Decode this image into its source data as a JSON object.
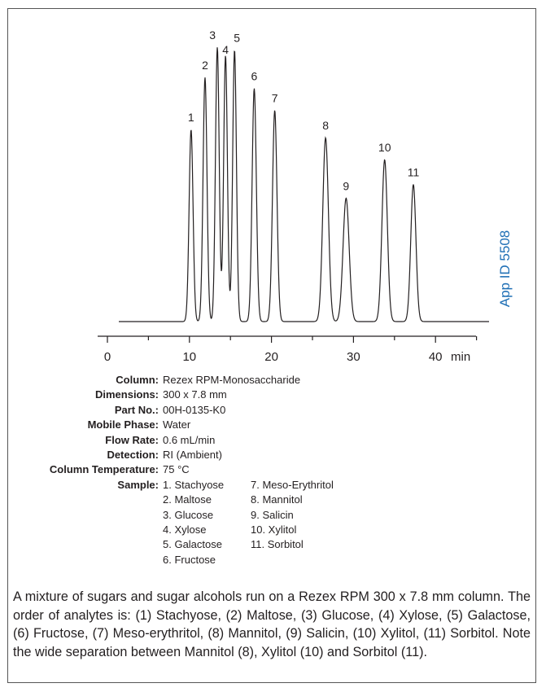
{
  "chart_data": {
    "type": "line",
    "xlabel": "min",
    "xlim": [
      -1.5,
      45
    ],
    "x_ticks": [
      0,
      10,
      20,
      30,
      40
    ],
    "x_tick_labels": [
      "0",
      "10",
      "20",
      "30",
      "40"
    ],
    "baseline": 0,
    "peaks": [
      {
        "label": "1",
        "rt": 10.2,
        "height": 0.7,
        "width": 0.42
      },
      {
        "label": "2",
        "rt": 11.9,
        "height": 0.89,
        "width": 0.42
      },
      {
        "label": "3",
        "rt": 13.4,
        "height": 1.0,
        "width": 0.4
      },
      {
        "label": "4",
        "rt": 14.4,
        "height": 0.97,
        "width": 0.4
      },
      {
        "label": "5",
        "rt": 15.5,
        "height": 0.99,
        "width": 0.4
      },
      {
        "label": "6",
        "rt": 17.9,
        "height": 0.85,
        "width": 0.45
      },
      {
        "label": "7",
        "rt": 20.4,
        "height": 0.77,
        "width": 0.48
      },
      {
        "label": "8",
        "rt": 26.6,
        "height": 0.67,
        "width": 0.6
      },
      {
        "label": "9",
        "rt": 29.1,
        "height": 0.45,
        "width": 0.65
      },
      {
        "label": "10",
        "rt": 33.8,
        "height": 0.59,
        "width": 0.58
      },
      {
        "label": "11",
        "rt": 37.3,
        "height": 0.5,
        "width": 0.55
      }
    ]
  },
  "app_id": "App ID 5508",
  "parameters": [
    {
      "label": "Column:",
      "value": "Rezex RPM-Monosaccharide"
    },
    {
      "label": "Dimensions:",
      "value": "300 x 7.8 mm"
    },
    {
      "label": "Part No.:",
      "value": "00H-0135-K0"
    },
    {
      "label": "Mobile Phase:",
      "value": "Water"
    },
    {
      "label": "Flow Rate:",
      "value": "0.6 mL/min"
    },
    {
      "label": "Detection:",
      "value": "RI (Ambient)"
    },
    {
      "label": "Column Temperature:",
      "value": "75 °C"
    }
  ],
  "sample": {
    "label": "Sample:",
    "col1": [
      "1. Stachyose",
      "2. Maltose",
      "3. Glucose",
      "4. Xylose",
      "5. Galactose",
      "6. Fructose"
    ],
    "col2": [
      "7. Meso-Erythritol",
      "8. Mannitol",
      "9. Salicin",
      "10. Xylitol",
      "11. Sorbitol"
    ]
  },
  "caption": "A mixture of sugars and sugar alcohols run on a Rezex RPM 300 x 7.8 mm column. The order of analytes is: (1) Stachyose, (2) Maltose, (3) Glucose, (4) Xylose, (5) Galactose, (6) Fructose, (7) Meso-erythritol, (8) Mannitol, (9) Salicin, (10) Xylitol, (11) Sorbitol. Note the wide separation between Mannitol (8), Xylitol (10) and Sorbitol (11)."
}
